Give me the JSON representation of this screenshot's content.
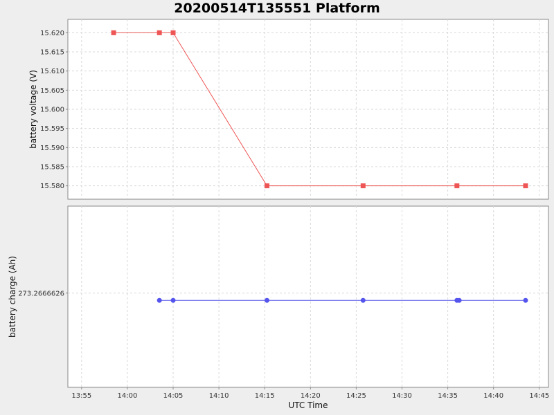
{
  "chart_data": {
    "type": "line",
    "title": "20200514T135551 Platform",
    "xlabel": "UTC Time",
    "x_ticks": [
      "13:55",
      "14:00",
      "14:05",
      "14:10",
      "14:15",
      "14:20",
      "14:25",
      "14:30",
      "14:35",
      "14:40",
      "14:45"
    ],
    "xlim": [
      "13:53:30",
      "14:46:00"
    ],
    "grid": true,
    "subplots": [
      {
        "ylabel": "battery voltage (V)",
        "ylim": [
          15.5765,
          15.6235
        ],
        "y_ticks": [
          "15.620",
          "15.615",
          "15.610",
          "15.605",
          "15.600",
          "15.595",
          "15.590",
          "15.585",
          "15.580"
        ],
        "y_tick_values": [
          15.62,
          15.615,
          15.61,
          15.605,
          15.6,
          15.595,
          15.59,
          15.585,
          15.58
        ],
        "series": [
          {
            "color": "#ee5555",
            "marker": "square",
            "points": [
              {
                "x": "13:58:30",
                "y": 15.62
              },
              {
                "x": "14:03:30",
                "y": 15.62
              },
              {
                "x": "14:05:00",
                "y": 15.62
              },
              {
                "x": "14:15:15",
                "y": 15.58
              },
              {
                "x": "14:25:45",
                "y": 15.58
              },
              {
                "x": "14:36:00",
                "y": 15.58
              },
              {
                "x": "14:43:30",
                "y": 15.58
              }
            ]
          }
        ]
      },
      {
        "ylabel": "battery charge (Ah)",
        "ylim": [
          273.26666,
          273.266665
        ],
        "y_ticks": [
          "273.2666626"
        ],
        "y_tick_values": [
          273.2666626
        ],
        "series": [
          {
            "color": "#5555ee",
            "marker": "circle",
            "points": [
              {
                "x": "14:03:30",
                "y": 273.2666624
              },
              {
                "x": "14:05:00",
                "y": 273.2666624
              },
              {
                "x": "14:15:15",
                "y": 273.2666624
              },
              {
                "x": "14:25:45",
                "y": 273.2666624
              },
              {
                "x": "14:36:00",
                "y": 273.2666624
              },
              {
                "x": "14:36:15",
                "y": 273.2666624
              },
              {
                "x": "14:43:30",
                "y": 273.2666624
              }
            ]
          }
        ]
      }
    ]
  }
}
